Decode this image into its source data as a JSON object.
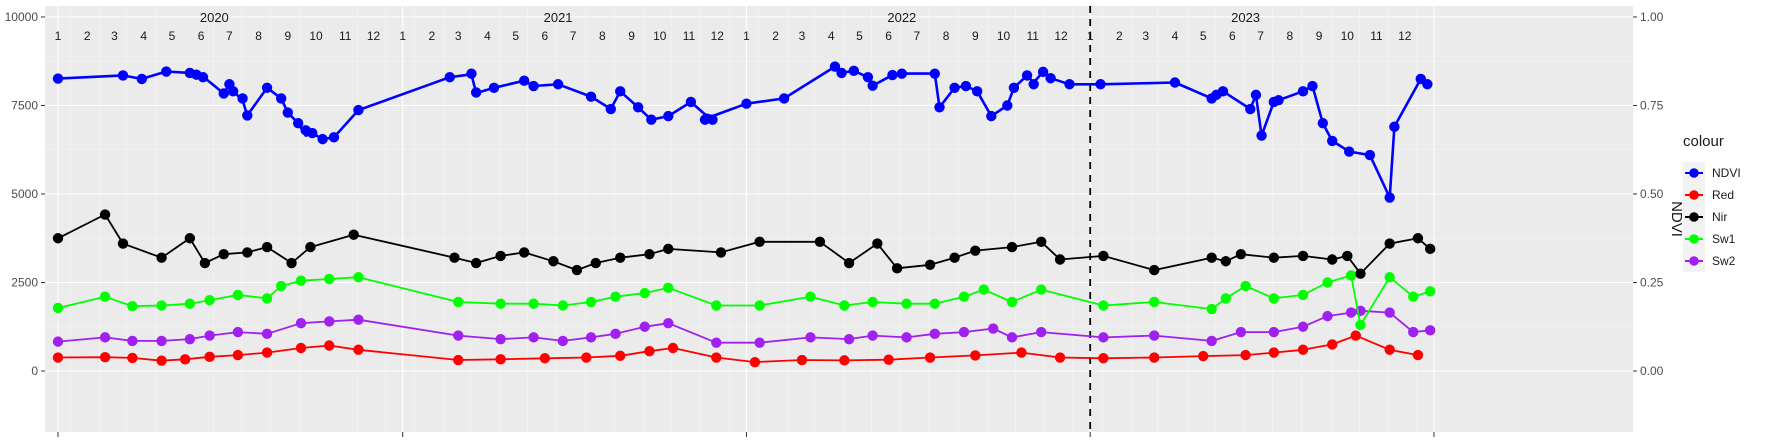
{
  "chart_data": {
    "type": "line",
    "xlabel": "",
    "ylabel": "",
    "y2label": "NDVI",
    "ylim": [
      0,
      10000
    ],
    "y2lim": [
      0,
      1
    ],
    "yticks": [
      "0",
      "2500",
      "5000",
      "7500",
      "10000"
    ],
    "y2ticks": [
      "0.00",
      "0.25",
      "0.50",
      "0.75",
      "1.00"
    ],
    "xlim": [
      "2020-01-01",
      "2023-12-31"
    ],
    "years": [
      {
        "label": "2020",
        "date": "2020-06-15"
      },
      {
        "label": "2021",
        "date": "2021-06-15"
      },
      {
        "label": "2022",
        "date": "2022-06-15"
      },
      {
        "label": "2023",
        "date": "2023-06-15"
      }
    ],
    "months": [
      "1",
      "2",
      "3",
      "4",
      "5",
      "6",
      "7",
      "8",
      "9",
      "10",
      "11",
      "12"
    ],
    "vline_date": "2023-01-01",
    "legend": {
      "title": "colour",
      "position": "right"
    },
    "series": [
      {
        "name": "NDVI",
        "color": "#0000ff",
        "axis": "right",
        "x": [
          "2020-01-01",
          "2020-03-10",
          "2020-03-30",
          "2020-04-25",
          "2020-05-20",
          "2020-05-27",
          "2020-06-03",
          "2020-06-25",
          "2020-07-01",
          "2020-07-05",
          "2020-07-15",
          "2020-07-20",
          "2020-08-10",
          "2020-08-25",
          "2020-09-01",
          "2020-09-12",
          "2020-09-20",
          "2020-09-27",
          "2020-10-08",
          "2020-10-20",
          "2020-11-15",
          "2021-02-20",
          "2021-03-15",
          "2021-03-20",
          "2021-04-08",
          "2021-05-10",
          "2021-05-20",
          "2021-06-15",
          "2021-07-20",
          "2021-08-10",
          "2021-08-20",
          "2021-09-08",
          "2021-09-22",
          "2021-10-10",
          "2021-11-03",
          "2021-11-18",
          "2021-11-26",
          "2022-01-01",
          "2022-02-10",
          "2022-04-05",
          "2022-04-12",
          "2022-04-25",
          "2022-05-10",
          "2022-05-15",
          "2022-06-05",
          "2022-06-15",
          "2022-07-20",
          "2022-07-25",
          "2022-08-10",
          "2022-08-22",
          "2022-09-03",
          "2022-09-18",
          "2022-10-05",
          "2022-10-12",
          "2022-10-26",
          "2022-11-02",
          "2022-11-12",
          "2022-11-20",
          "2022-12-10",
          "2023-01-12",
          "2023-04-01",
          "2023-05-10",
          "2023-05-15",
          "2023-05-22",
          "2023-06-20",
          "2023-06-26",
          "2023-07-02",
          "2023-07-15",
          "2023-07-20",
          "2023-08-15",
          "2023-08-25",
          "2023-09-05",
          "2023-09-15",
          "2023-10-03",
          "2023-10-25",
          "2023-11-15",
          "2023-11-20",
          "2023-12-18",
          "2023-12-25"
        ],
        "values": [
          0.826,
          0.835,
          0.825,
          0.846,
          0.842,
          0.837,
          0.832,
          0.784,
          0.81,
          0.79,
          0.765,
          0.722,
          0.8,
          0.77,
          0.73,
          0.7,
          0.665,
          0.672,
          0.655,
          0.66,
          0.737,
          0.83,
          0.838,
          0.785,
          0.8,
          0.82,
          0.805,
          0.81,
          0.775,
          0.74,
          0.79,
          0.745,
          0.71,
          0.72,
          0.76,
          0.725,
          0.72,
          0.755,
          0.77,
          0.86,
          0.842,
          0.848,
          0.83,
          0.806,
          0.836,
          0.84,
          0.84,
          0.745,
          0.8,
          0.805,
          0.79,
          0.72,
          0.75,
          0.8,
          0.835,
          0.815,
          0.845,
          0.827,
          0.81,
          0.81,
          0.815,
          0.77,
          0.78,
          0.79,
          0.74,
          0.78,
          0.665,
          0.76,
          0.765,
          0.79,
          0.805,
          0.7,
          0.65,
          0.62,
          0.61,
          0.49,
          0.69,
          0.825,
          0.81
        ],
        "points": [
          0.826,
          0.835,
          0.825,
          0.846,
          0.842,
          0.837,
          0.83,
          0.784,
          0.81,
          0.79,
          0.77,
          0.722,
          0.8,
          0.77,
          0.73,
          0.7,
          0.68,
          0.672,
          0.655,
          0.66,
          0.737,
          0.83,
          0.84,
          0.787,
          0.8,
          0.82,
          0.805,
          0.81,
          0.775,
          0.74,
          0.79,
          0.745,
          0.71,
          0.72,
          0.76,
          0.71,
          0.71,
          0.755,
          0.77,
          0.86,
          0.842,
          0.848,
          0.83,
          0.806,
          0.836,
          0.84,
          0.84,
          0.745,
          0.8,
          0.805,
          0.79,
          0.72,
          0.75,
          0.8,
          0.835,
          0.81,
          0.845,
          0.827,
          0.81,
          0.81,
          0.815,
          0.77,
          0.78,
          0.79,
          0.74,
          0.78,
          0.665,
          0.76,
          0.765,
          0.79,
          0.805,
          0.7,
          0.65,
          0.62,
          0.61,
          0.49,
          0.69,
          0.825,
          0.81
        ]
      },
      {
        "name": "Red",
        "color": "#ff0000",
        "axis": "left",
        "x": [
          "2020-01-01",
          "2020-02-20",
          "2020-03-20",
          "2020-04-20",
          "2020-05-15",
          "2020-06-10",
          "2020-07-10",
          "2020-08-10",
          "2020-09-15",
          "2020-10-15",
          "2020-11-15",
          "2021-03-01",
          "2021-04-15",
          "2021-06-01",
          "2021-07-15",
          "2021-08-20",
          "2021-09-20",
          "2021-10-15",
          "2021-11-30",
          "2022-01-10",
          "2022-03-01",
          "2022-04-15",
          "2022-06-01",
          "2022-07-15",
          "2022-09-01",
          "2022-10-20",
          "2022-11-30",
          "2023-01-15",
          "2023-03-10",
          "2023-05-01",
          "2023-06-15",
          "2023-07-15",
          "2023-08-15",
          "2023-09-15",
          "2023-10-10",
          "2023-11-15",
          "2023-12-15"
        ],
        "values": [
          380,
          390,
          370,
          290,
          330,
          400,
          450,
          520,
          650,
          720,
          600,
          310,
          330,
          360,
          380,
          430,
          560,
          650,
          380,
          250,
          310,
          300,
          320,
          380,
          440,
          520,
          380,
          360,
          380,
          420,
          450,
          520,
          600,
          750,
          1000,
          600,
          450
        ]
      },
      {
        "name": "Nir",
        "color": "#000000",
        "axis": "left",
        "x": [
          "2020-01-01",
          "2020-02-20",
          "2020-03-10",
          "2020-04-20",
          "2020-05-20",
          "2020-06-05",
          "2020-06-25",
          "2020-07-20",
          "2020-08-10",
          "2020-09-05",
          "2020-09-25",
          "2020-11-10",
          "2021-02-25",
          "2021-03-20",
          "2021-04-15",
          "2021-05-10",
          "2021-06-10",
          "2021-07-05",
          "2021-07-25",
          "2021-08-20",
          "2021-09-20",
          "2021-10-10",
          "2021-12-05",
          "2022-01-15",
          "2022-03-20",
          "2022-04-20",
          "2022-05-20",
          "2022-06-10",
          "2022-07-15",
          "2022-08-10",
          "2022-09-01",
          "2022-10-10",
          "2022-11-10",
          "2022-11-30",
          "2023-01-15",
          "2023-03-10",
          "2023-05-10",
          "2023-05-25",
          "2023-06-10",
          "2023-07-15",
          "2023-08-15",
          "2023-09-15",
          "2023-10-01",
          "2023-10-15",
          "2023-11-15",
          "2023-12-15",
          "2023-12-28"
        ],
        "values": [
          3750,
          4420,
          3600,
          3200,
          3750,
          3050,
          3300,
          3350,
          3500,
          3050,
          3500,
          3850,
          3200,
          3050,
          3250,
          3350,
          3100,
          2850,
          3050,
          3200,
          3300,
          3450,
          3350,
          3650,
          3650,
          3050,
          3600,
          2900,
          3000,
          3200,
          3400,
          3500,
          3650,
          3150,
          3250,
          2850,
          3200,
          3100,
          3300,
          3200,
          3250,
          3150,
          3250,
          2750,
          3600,
          3750,
          3450
        ]
      },
      {
        "name": "Sw1",
        "color": "#00ff00",
        "axis": "left",
        "x": [
          "2020-01-01",
          "2020-02-20",
          "2020-03-20",
          "2020-04-20",
          "2020-05-20",
          "2020-06-10",
          "2020-07-10",
          "2020-08-10",
          "2020-08-25",
          "2020-09-15",
          "2020-10-15",
          "2020-11-15",
          "2021-03-01",
          "2021-04-15",
          "2021-05-20",
          "2021-06-20",
          "2021-07-20",
          "2021-08-15",
          "2021-09-15",
          "2021-10-10",
          "2021-11-30",
          "2022-01-15",
          "2022-03-10",
          "2022-04-15",
          "2022-05-15",
          "2022-06-20",
          "2022-07-20",
          "2022-08-20",
          "2022-09-10",
          "2022-10-10",
          "2022-11-10",
          "2023-01-15",
          "2023-03-10",
          "2023-05-10",
          "2023-05-25",
          "2023-06-15",
          "2023-07-15",
          "2023-08-15",
          "2023-09-10",
          "2023-10-05",
          "2023-10-15",
          "2023-11-15",
          "2023-12-10",
          "2023-12-28"
        ],
        "values": [
          1780,
          2100,
          1830,
          1850,
          1900,
          2000,
          2150,
          2050,
          2400,
          2550,
          2600,
          2650,
          1950,
          1900,
          1900,
          1850,
          1950,
          2100,
          2200,
          2350,
          1850,
          1850,
          2100,
          1850,
          1950,
          1900,
          1900,
          2100,
          2300,
          1950,
          2300,
          1850,
          1950,
          1750,
          2050,
          2400,
          2050,
          2150,
          2500,
          2700,
          1300,
          2650,
          2100,
          2250
        ]
      },
      {
        "name": "Sw2",
        "color": "#a020f0",
        "axis": "left",
        "x": [
          "2020-01-01",
          "2020-02-20",
          "2020-03-20",
          "2020-04-20",
          "2020-05-20",
          "2020-06-10",
          "2020-07-10",
          "2020-08-10",
          "2020-09-15",
          "2020-10-15",
          "2020-11-15",
          "2021-03-01",
          "2021-04-15",
          "2021-05-20",
          "2021-06-20",
          "2021-07-20",
          "2021-08-15",
          "2021-09-15",
          "2021-10-10",
          "2021-11-30",
          "2022-01-15",
          "2022-03-10",
          "2022-04-20",
          "2022-05-15",
          "2022-06-20",
          "2022-07-20",
          "2022-08-20",
          "2022-09-20",
          "2022-10-10",
          "2022-11-10",
          "2023-01-15",
          "2023-03-10",
          "2023-05-10",
          "2023-06-10",
          "2023-07-15",
          "2023-08-15",
          "2023-09-10",
          "2023-10-05",
          "2023-10-15",
          "2023-11-15",
          "2023-12-10",
          "2023-12-28"
        ],
        "values": [
          830,
          950,
          850,
          850,
          900,
          1000,
          1100,
          1050,
          1350,
          1400,
          1450,
          1000,
          900,
          950,
          850,
          950,
          1050,
          1250,
          1350,
          800,
          800,
          950,
          900,
          1000,
          950,
          1050,
          1100,
          1200,
          950,
          1100,
          950,
          1000,
          850,
          1100,
          1100,
          1250,
          1550,
          1650,
          1700,
          1650,
          1100,
          1150
        ]
      }
    ]
  }
}
